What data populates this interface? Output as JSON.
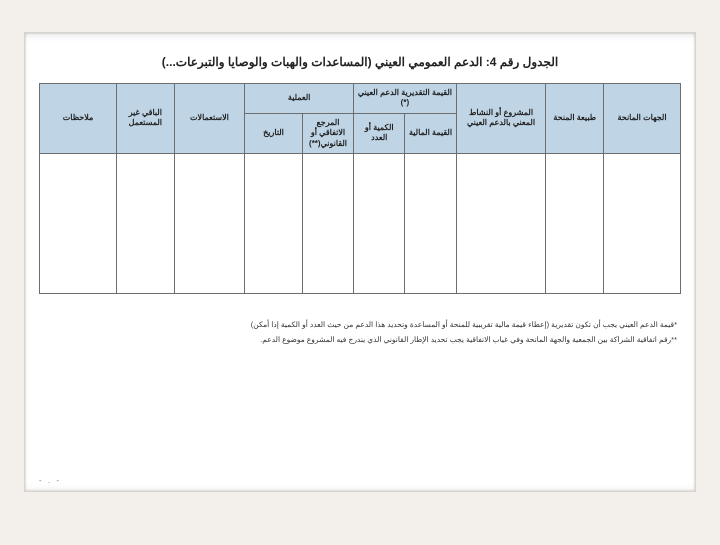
{
  "title": "الجدول رقم 4: الدعم العمومي العيني (المساعدات والهبات والوصايا والتبرعات...)",
  "table": {
    "header_bg": "#bfd5e6",
    "border_color": "#6d6d6d",
    "columns": [
      {
        "key": "donor",
        "label": "الجهات المانحة",
        "rowspan": 2
      },
      {
        "key": "nature",
        "label": "طبيعة المنحة",
        "rowspan": 2
      },
      {
        "key": "project",
        "label": "المشروع أو النشاط المعني بالدعم العيني",
        "rowspan": 2
      },
      {
        "key": "est_group",
        "label": "القيمة التقديرية الدعم العيني (*)",
        "colspan": 2,
        "sub": [
          {
            "key": "fin_value",
            "label": "القيمة المالية"
          },
          {
            "key": "qty",
            "label": "الكمية أو العدد"
          }
        ]
      },
      {
        "key": "op_group",
        "label": "العملية",
        "colspan": 2,
        "sub": [
          {
            "key": "ref",
            "label": "المرجع الاتفاقي أو القانوني(**)"
          },
          {
            "key": "date",
            "label": "التاريخ"
          }
        ]
      },
      {
        "key": "uses",
        "label": "الاستعمالات",
        "rowspan": 2
      },
      {
        "key": "remaining",
        "label": "الباقي غير المستعمل",
        "rowspan": 2
      },
      {
        "key": "notes",
        "label": "ملاحظات",
        "rowspan": 2
      }
    ],
    "rows": [
      {
        "donor": "",
        "nature": "",
        "project": "",
        "fin_value": "",
        "qty": "",
        "ref": "",
        "date": "",
        "uses": "",
        "remaining": "",
        "notes": ""
      }
    ]
  },
  "footnotes": [
    "*قيمة الدعم العيني يجب أن تكون تقديرية (إعطاء قيمة مالية تقريبية للمنحة أو المساعدة وتحديد هذا الدعم من حيث العدد أو الكمية إذا أمكن)",
    "**رقم اتفاقية الشراكة بين الجمعية والجهة المانحة وفي غياب الاتفاقية يجب تحديد الإطار القانوني الذي يندرج فيه المشروع موضوع الدعم."
  ],
  "page_number": "- . -"
}
